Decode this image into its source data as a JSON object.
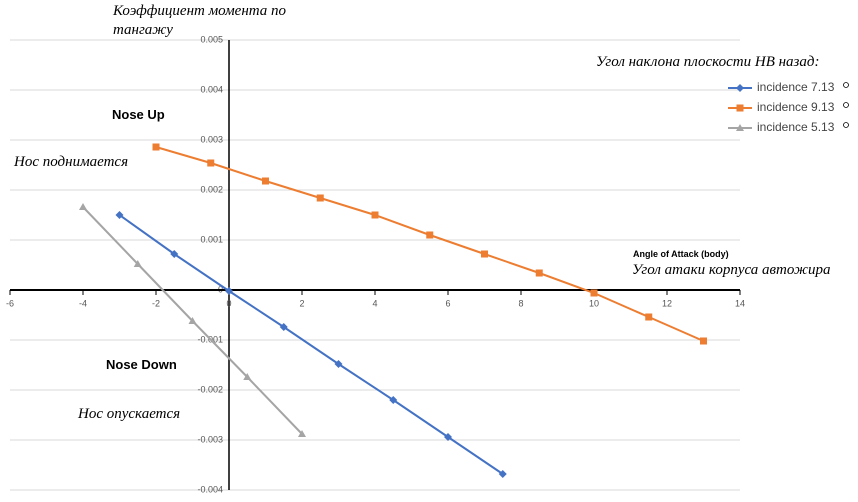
{
  "chart_data": {
    "type": "line",
    "title": "Коэффициент момента по тангажу",
    "x_label": "Angle of Attack (body)",
    "x_label_ru": "Угол атаки корпуса автожира",
    "legend_title": "Угол наклона плоскости НВ назад:",
    "annotations": {
      "nose_up": "Nose Up",
      "nose_up_ru": "Нос поднимается",
      "nose_down": "Nose Down",
      "nose_down_ru": "Нос опускается"
    },
    "xlim": [
      -6,
      14
    ],
    "xticks": [
      -6,
      -4,
      -2,
      0,
      2,
      4,
      6,
      8,
      10,
      12,
      14
    ],
    "ylim": [
      -0.004,
      0.005
    ],
    "yticks": [
      -0.004,
      -0.003,
      -0.002,
      -0.001,
      0,
      0.001,
      0.002,
      0.003,
      0.004,
      0.005
    ],
    "grid": true,
    "series": [
      {
        "name": "incidence 7.13",
        "color": "#4472c4",
        "marker": "diamond",
        "x": [
          -3,
          -1.5,
          0,
          1.5,
          3,
          4.5,
          6,
          7.5
        ],
        "values": [
          0.0015,
          0.00072,
          -2e-05,
          -0.00074,
          -0.00148,
          -0.0022,
          -0.00294,
          -0.00368
        ]
      },
      {
        "name": "incidence 9.13",
        "color": "#ed7d31",
        "marker": "square",
        "x": [
          -2,
          -0.5,
          1,
          2.5,
          4,
          5.5,
          7,
          8.5,
          10,
          11.5,
          13
        ],
        "values": [
          0.00286,
          0.00254,
          0.00218,
          0.00184,
          0.0015,
          0.0011,
          0.00072,
          0.00034,
          -6e-05,
          -0.00054,
          -0.00102
        ]
      },
      {
        "name": "incidence 5.13",
        "color": "#a5a5a5",
        "marker": "triangle",
        "x": [
          -4,
          -2.5,
          -1,
          0.5,
          2
        ],
        "values": [
          0.00166,
          0.00052,
          -0.00062,
          -0.00174,
          -0.00288
        ]
      }
    ]
  }
}
